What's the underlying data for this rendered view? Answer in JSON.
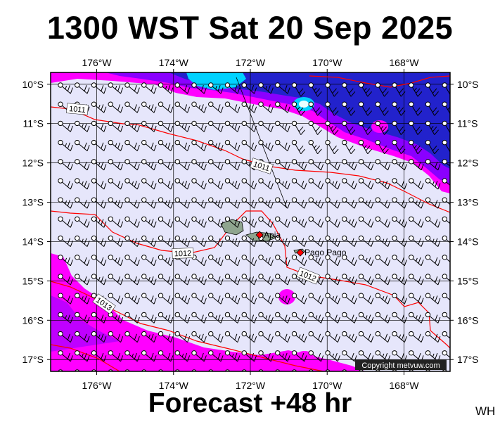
{
  "header": {
    "title": "1300 WST Sat 20 Sep 2025"
  },
  "footer": {
    "forecast": "Forecast +48 hr",
    "code": "WH"
  },
  "map": {
    "lon_range": [
      -177.2,
      -166.8
    ],
    "lat_range": [
      -17.3,
      -9.7
    ],
    "lon_ticks": [
      "176°W",
      "174°W",
      "172°W",
      "170°W",
      "168°W"
    ],
    "lat_ticks": [
      "10°S",
      "11°S",
      "12°S",
      "13°S",
      "14°S",
      "15°S",
      "16°S",
      "17°S"
    ],
    "isobar_labels": [
      "1011",
      "1011",
      "1012",
      "1012",
      "1013"
    ],
    "places": [
      {
        "name": "Apia",
        "lon": -171.76,
        "lat": -13.83
      },
      {
        "name": "Pago Pago",
        "lon": -170.7,
        "lat": -14.28
      }
    ],
    "copyright": "Copyright metvuw.com",
    "colors": {
      "ocean": "#e6e6fb",
      "rain_light": "#ff00ff",
      "rain_medium": "#8a00ff",
      "rain_heavy": "#2222cc",
      "rain_extreme": "#00d2ff",
      "isobar": "#ff0000",
      "land": "#8fa58f"
    }
  }
}
